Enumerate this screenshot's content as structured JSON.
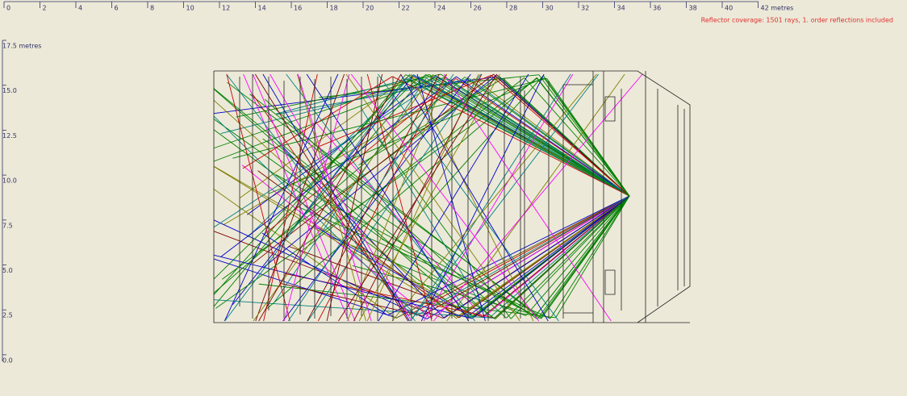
{
  "ruler": {
    "x_labels": [
      "0",
      "2",
      "4",
      "6",
      "8",
      "10",
      "12",
      "14",
      "16",
      "18",
      "20",
      "22",
      "24",
      "26",
      "28",
      "30",
      "32",
      "34",
      "36",
      "38",
      "40",
      "42 metres"
    ],
    "y_labels": [
      "17.5 metres",
      "15.0",
      "12.5",
      "10.0",
      "7.5",
      "5.0",
      "2.5",
      "0.0"
    ]
  },
  "status": "Reflector coverage: 1501 rays, 1. order reflections included"
}
